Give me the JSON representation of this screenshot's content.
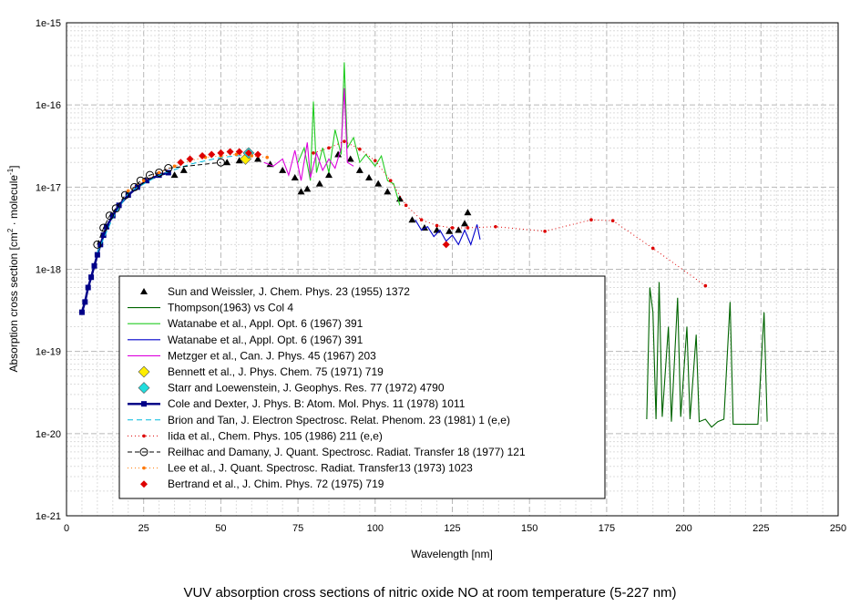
{
  "chart_data": {
    "type": "line",
    "title": "VUV absorption cross sections of nitric oxide NO at room temperature (5-227 nm)",
    "xlabel": "Wavelength [nm]",
    "ylabel": {
      "main": "Absorption cross section [cm",
      "sup1": "2",
      "mid": " · molecule",
      "sup2": "-1",
      "end": "]"
    },
    "xlim": [
      0,
      250
    ],
    "ylim": [
      1e-21,
      1e-15
    ],
    "yscale": "log",
    "grid": true,
    "legend_position": "center-left",
    "x_ticks": [
      "0",
      "25",
      "50",
      "75",
      "100",
      "125",
      "150",
      "175",
      "200",
      "225",
      "250"
    ],
    "y_ticks": [
      "1e-21",
      "1e-20",
      "1e-19",
      "1e-18",
      "1e-17",
      "1e-16",
      "1e-15"
    ],
    "series": [
      {
        "name": "Sun and Weissler, J. Chem. Phys. 23 (1955) 1372",
        "color": "#000000",
        "marker": "triangle",
        "points": [
          [
            35,
            1.4e-17
          ],
          [
            38,
            1.6e-17
          ],
          [
            52,
            2e-17
          ],
          [
            56,
            2.1e-17
          ],
          [
            62,
            2.2e-17
          ],
          [
            66,
            1.9e-17
          ],
          [
            70,
            1.6e-17
          ],
          [
            74,
            1.3e-17
          ],
          [
            76,
            8.8e-18
          ],
          [
            78,
            9.5e-18
          ],
          [
            82,
            1.1e-17
          ],
          [
            85,
            1.4e-17
          ],
          [
            88,
            2.5e-17
          ],
          [
            92,
            2.2e-17
          ],
          [
            95,
            1.6e-17
          ],
          [
            98,
            1.3e-17
          ],
          [
            101,
            1.1e-17
          ],
          [
            104,
            8.8e-18
          ],
          [
            108,
            7.2e-18
          ],
          [
            112,
            4e-18
          ],
          [
            116,
            3.2e-18
          ],
          [
            120,
            3e-18
          ],
          [
            124,
            2.9e-18
          ],
          [
            127,
            3e-18
          ],
          [
            129,
            3.6e-18
          ],
          [
            130,
            4.9e-18
          ]
        ]
      },
      {
        "name": "Thompson(1963) vs Col 4",
        "color": "#006400",
        "marker": "none",
        "points": [
          [
            188,
            1.5e-20
          ],
          [
            189,
            6e-19
          ],
          [
            190,
            3e-19
          ],
          [
            191,
            1.5e-20
          ],
          [
            192,
            7e-19
          ],
          [
            193,
            1.6e-20
          ],
          [
            195,
            2e-19
          ],
          [
            196,
            1.4e-20
          ],
          [
            198,
            4.5e-19
          ],
          [
            199,
            1.6e-20
          ],
          [
            201,
            2e-19
          ],
          [
            202,
            1.5e-20
          ],
          [
            204,
            1.6e-19
          ],
          [
            205,
            1.4e-20
          ],
          [
            207,
            1.5e-20
          ],
          [
            209,
            1.2e-20
          ],
          [
            211,
            1.4e-20
          ],
          [
            213,
            1.5e-20
          ],
          [
            215,
            4e-19
          ],
          [
            216,
            1.3e-20
          ],
          [
            224,
            1.3e-20
          ],
          [
            226,
            3e-19
          ],
          [
            227,
            1.4e-20
          ]
        ]
      },
      {
        "name": "Watanabe et al., Appl. Opt. 6 (1967) 391",
        "color": "#22cc22",
        "marker": "none",
        "points": [
          [
            75,
            2e-17
          ],
          [
            77,
            3e-17
          ],
          [
            79,
            1.2e-17
          ],
          [
            80,
            1.1e-16
          ],
          [
            81,
            1.5e-17
          ],
          [
            83,
            3e-17
          ],
          [
            85,
            1.5e-17
          ],
          [
            87,
            5e-17
          ],
          [
            89,
            2.5e-17
          ],
          [
            90,
            3.3e-16
          ],
          [
            91,
            3e-17
          ],
          [
            93,
            4e-17
          ],
          [
            95,
            2e-17
          ],
          [
            97,
            2.5e-17
          ],
          [
            100,
            1.8e-17
          ],
          [
            102,
            2.4e-17
          ],
          [
            104,
            1.2e-17
          ],
          [
            106,
            1.1e-17
          ],
          [
            108,
            6e-18
          ]
        ]
      },
      {
        "name": "Watanabe et al., Appl. Opt. 6 (1967) 391",
        "color": "#0000cc",
        "marker": "none",
        "points": [
          [
            113,
            4e-18
          ],
          [
            115,
            3e-18
          ],
          [
            117,
            3.3e-18
          ],
          [
            119,
            2.5e-18
          ],
          [
            121,
            3e-18
          ],
          [
            123,
            2.2e-18
          ],
          [
            125,
            2.6e-18
          ],
          [
            127,
            2e-18
          ],
          [
            129,
            3e-18
          ],
          [
            131,
            2e-18
          ],
          [
            133,
            3.5e-18
          ],
          [
            134,
            2.3e-18
          ]
        ]
      },
      {
        "name": "Metzger et al., Can. J. Phys. 45 (1967) 203",
        "color": "#dd00dd",
        "marker": "none",
        "points": [
          [
            64,
            2e-17
          ],
          [
            67,
            1.8e-17
          ],
          [
            70,
            2.2e-17
          ],
          [
            72,
            1.4e-17
          ],
          [
            74,
            2.8e-17
          ],
          [
            76,
            1.2e-17
          ],
          [
            78,
            3.5e-17
          ],
          [
            79,
            1.3e-17
          ],
          [
            81,
            2.6e-17
          ],
          [
            83,
            1.6e-17
          ],
          [
            85,
            2.2e-17
          ],
          [
            87,
            1.7e-17
          ],
          [
            89,
            3e-17
          ],
          [
            90,
            1.6e-16
          ],
          [
            91,
            2e-17
          ],
          [
            93,
            1.8e-17
          ]
        ]
      },
      {
        "name": "Bennett et al., J. Phys. Chem. 75 (1971) 719",
        "color": "#ffee00",
        "marker": "diamond",
        "points": [
          [
            58,
            2.2e-17
          ]
        ]
      },
      {
        "name": "Starr and Loewenstein, J. Geophys. Res. 77 (1972) 4790",
        "color": "#22dddd",
        "marker": "diamond",
        "points": [
          [
            59,
            2.6e-17
          ]
        ]
      },
      {
        "name": "Cole and Dexter, J. Phys. B: Atom. Mol. Phys. 11 (1978) 1011",
        "color": "#000088",
        "marker": "square",
        "points": [
          [
            5,
            3e-19
          ],
          [
            6,
            4e-19
          ],
          [
            7,
            6e-19
          ],
          [
            8,
            8e-19
          ],
          [
            9,
            1.1e-18
          ],
          [
            10,
            1.5e-18
          ],
          [
            11,
            2e-18
          ],
          [
            12,
            2.6e-18
          ],
          [
            13,
            3.3e-18
          ],
          [
            15,
            4.5e-18
          ],
          [
            17,
            6e-18
          ],
          [
            20,
            8e-18
          ],
          [
            23,
            1e-17
          ],
          [
            26,
            1.2e-17
          ],
          [
            30,
            1.4e-17
          ],
          [
            33,
            1.5e-17
          ]
        ]
      },
      {
        "name": "Brion and Tan, J. Electron Spectrosc. Relat. Phenom. 23 (1981) 1 (e,e)",
        "color": "#00bbdd",
        "marker": "none",
        "points": [
          [
            10,
            1.6e-18
          ],
          [
            15,
            4.2e-18
          ],
          [
            20,
            8.5e-18
          ],
          [
            30,
            1.4e-17
          ],
          [
            40,
            1.9e-17
          ],
          [
            50,
            2.3e-17
          ],
          [
            60,
            2.5e-17
          ]
        ]
      },
      {
        "name": "Iida et al., Chem. Phys. 105 (1986) 211 (e,e)",
        "color": "#dd0000",
        "marker": "dot",
        "points": [
          [
            80,
            2.6e-17
          ],
          [
            85,
            3e-17
          ],
          [
            90,
            3.6e-17
          ],
          [
            95,
            2.9e-17
          ],
          [
            100,
            2.1e-17
          ],
          [
            105,
            1.2e-17
          ],
          [
            110,
            6e-18
          ],
          [
            115,
            4e-18
          ],
          [
            120,
            3.4e-18
          ],
          [
            125,
            3.2e-18
          ],
          [
            130,
            3.2e-18
          ],
          [
            139,
            3.3e-18
          ],
          [
            155,
            2.9e-18
          ],
          [
            170,
            4e-18
          ],
          [
            177,
            3.9e-18
          ],
          [
            190,
            1.8e-18
          ],
          [
            207,
            6.3e-19
          ]
        ]
      },
      {
        "name": "Reilhac and Damany, J. Quant. Spectrosc. Radiat. Transfer 18 (1977) 121",
        "color": "#000000",
        "marker": "circle",
        "points": [
          [
            10,
            2e-18
          ],
          [
            12,
            3.2e-18
          ],
          [
            14,
            4.5e-18
          ],
          [
            16,
            5.5e-18
          ],
          [
            19,
            8e-18
          ],
          [
            22,
            1e-17
          ],
          [
            24,
            1.2e-17
          ],
          [
            27,
            1.4e-17
          ],
          [
            30,
            1.5e-17
          ],
          [
            33,
            1.7e-17
          ],
          [
            50,
            2e-17
          ]
        ]
      },
      {
        "name": "Lee et al., J. Quant. Spectrosc. Radiat. Transfer13 (1973) 1023",
        "color": "#ff7700",
        "marker": "dot",
        "points": [
          [
            20,
            9e-18
          ],
          [
            25,
            1.2e-17
          ],
          [
            30,
            1.5e-17
          ],
          [
            35,
            1.8e-17
          ],
          [
            40,
            2.1e-17
          ],
          [
            45,
            2.3e-17
          ],
          [
            50,
            2.4e-17
          ],
          [
            55,
            2.5e-17
          ],
          [
            60,
            2.4e-17
          ],
          [
            65,
            2.3e-17
          ]
        ]
      },
      {
        "name": "Bertrand et al., J. Chim. Phys. 72 (1975) 719",
        "color": "#dd0000",
        "marker": "diamondred",
        "points": [
          [
            37,
            2e-17
          ],
          [
            40,
            2.2e-17
          ],
          [
            44,
            2.4e-17
          ],
          [
            47,
            2.5e-17
          ],
          [
            50,
            2.6e-17
          ],
          [
            53,
            2.7e-17
          ],
          [
            56,
            2.7e-17
          ],
          [
            59,
            2.6e-17
          ],
          [
            62,
            2.5e-17
          ],
          [
            123,
            2e-18
          ]
        ]
      }
    ]
  }
}
